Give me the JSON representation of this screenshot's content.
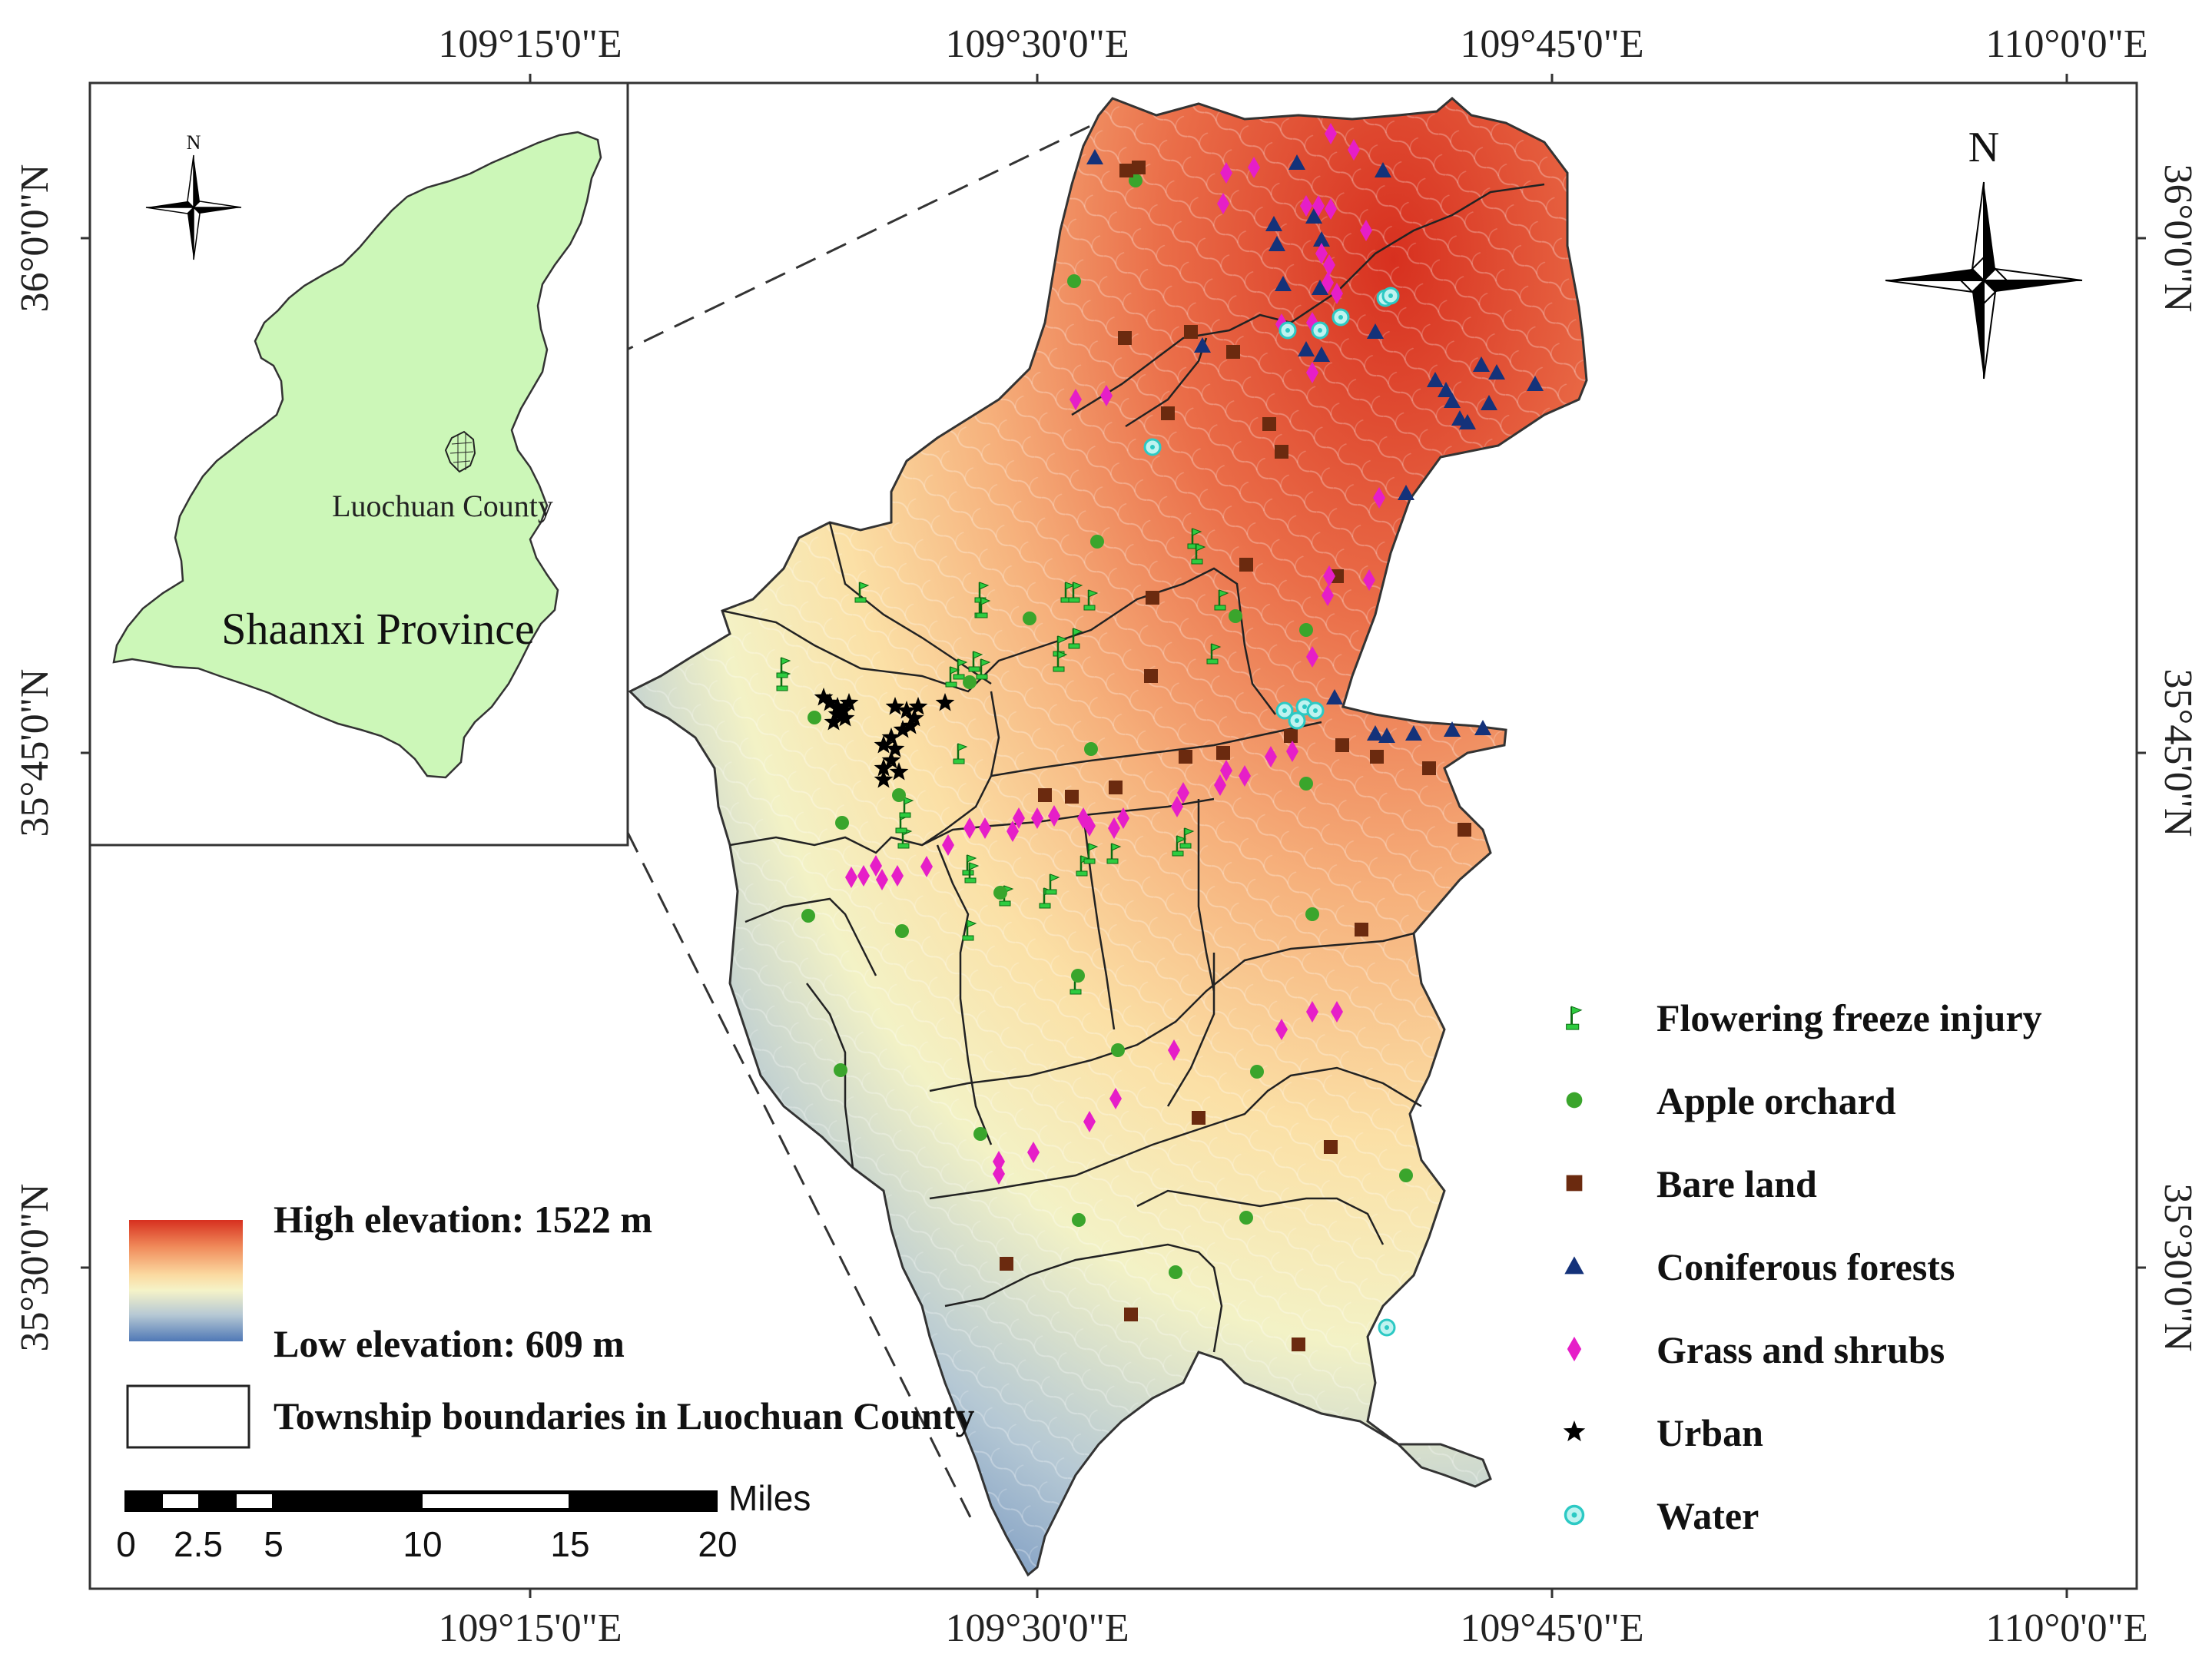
{
  "coords": {
    "top": [
      "109°15'0\"E",
      "109°30'0\"E",
      "109°45'0\"E",
      "110°0'0\"E"
    ],
    "bottom": [
      "109°15'0\"E",
      "109°30'0\"E",
      "109°45'0\"E",
      "110°0'0\"E"
    ],
    "left": [
      "36°0'0\"N",
      "35°45'0\"N",
      "35°30'0\"N"
    ],
    "right": [
      "36°0'0\"N",
      "35°45'0\"N",
      "35°30'0\"N"
    ]
  },
  "inset": {
    "north_label": "N",
    "province_label": "Shaanxi Province",
    "county_label": "Luochuan County",
    "province_color": "#ccf7b8"
  },
  "main_north_label": "N",
  "elevation": {
    "high_label": "High elevation: 1522 m",
    "low_label": "Low elevation: 609 m",
    "ramp": [
      "#d7301f",
      "#f08a5a",
      "#fbd9a0",
      "#f5f3c8",
      "#b7c9d4",
      "#4f78b6"
    ]
  },
  "boundary_legend": "Township boundaries in Luochuan County",
  "scale_bar": {
    "unit": "Miles",
    "ticks": [
      "0",
      "2.5",
      "5",
      "10",
      "15",
      "20"
    ]
  },
  "legend": [
    {
      "key": "flowering",
      "label": "Flowering freeze injury",
      "icon": "flag-icon",
      "color": "#2ecc40"
    },
    {
      "key": "apple",
      "label": "Apple orchard",
      "icon": "circle-icon",
      "color": "#3aa52c"
    },
    {
      "key": "bare",
      "label": "Bare land",
      "icon": "square-icon",
      "color": "#6b2a0f"
    },
    {
      "key": "conifer",
      "label": "Coniferous forests",
      "icon": "triangle-icon",
      "color": "#14327a"
    },
    {
      "key": "grass",
      "label": "Grass and shrubs",
      "icon": "diamond-icon",
      "color": "#e61ec8"
    },
    {
      "key": "urban",
      "label": "Urban",
      "icon": "star-icon",
      "color": "#000000"
    },
    {
      "key": "water",
      "label": "Water",
      "icon": "ring-icon",
      "color": "#2cc9c4"
    }
  ]
}
